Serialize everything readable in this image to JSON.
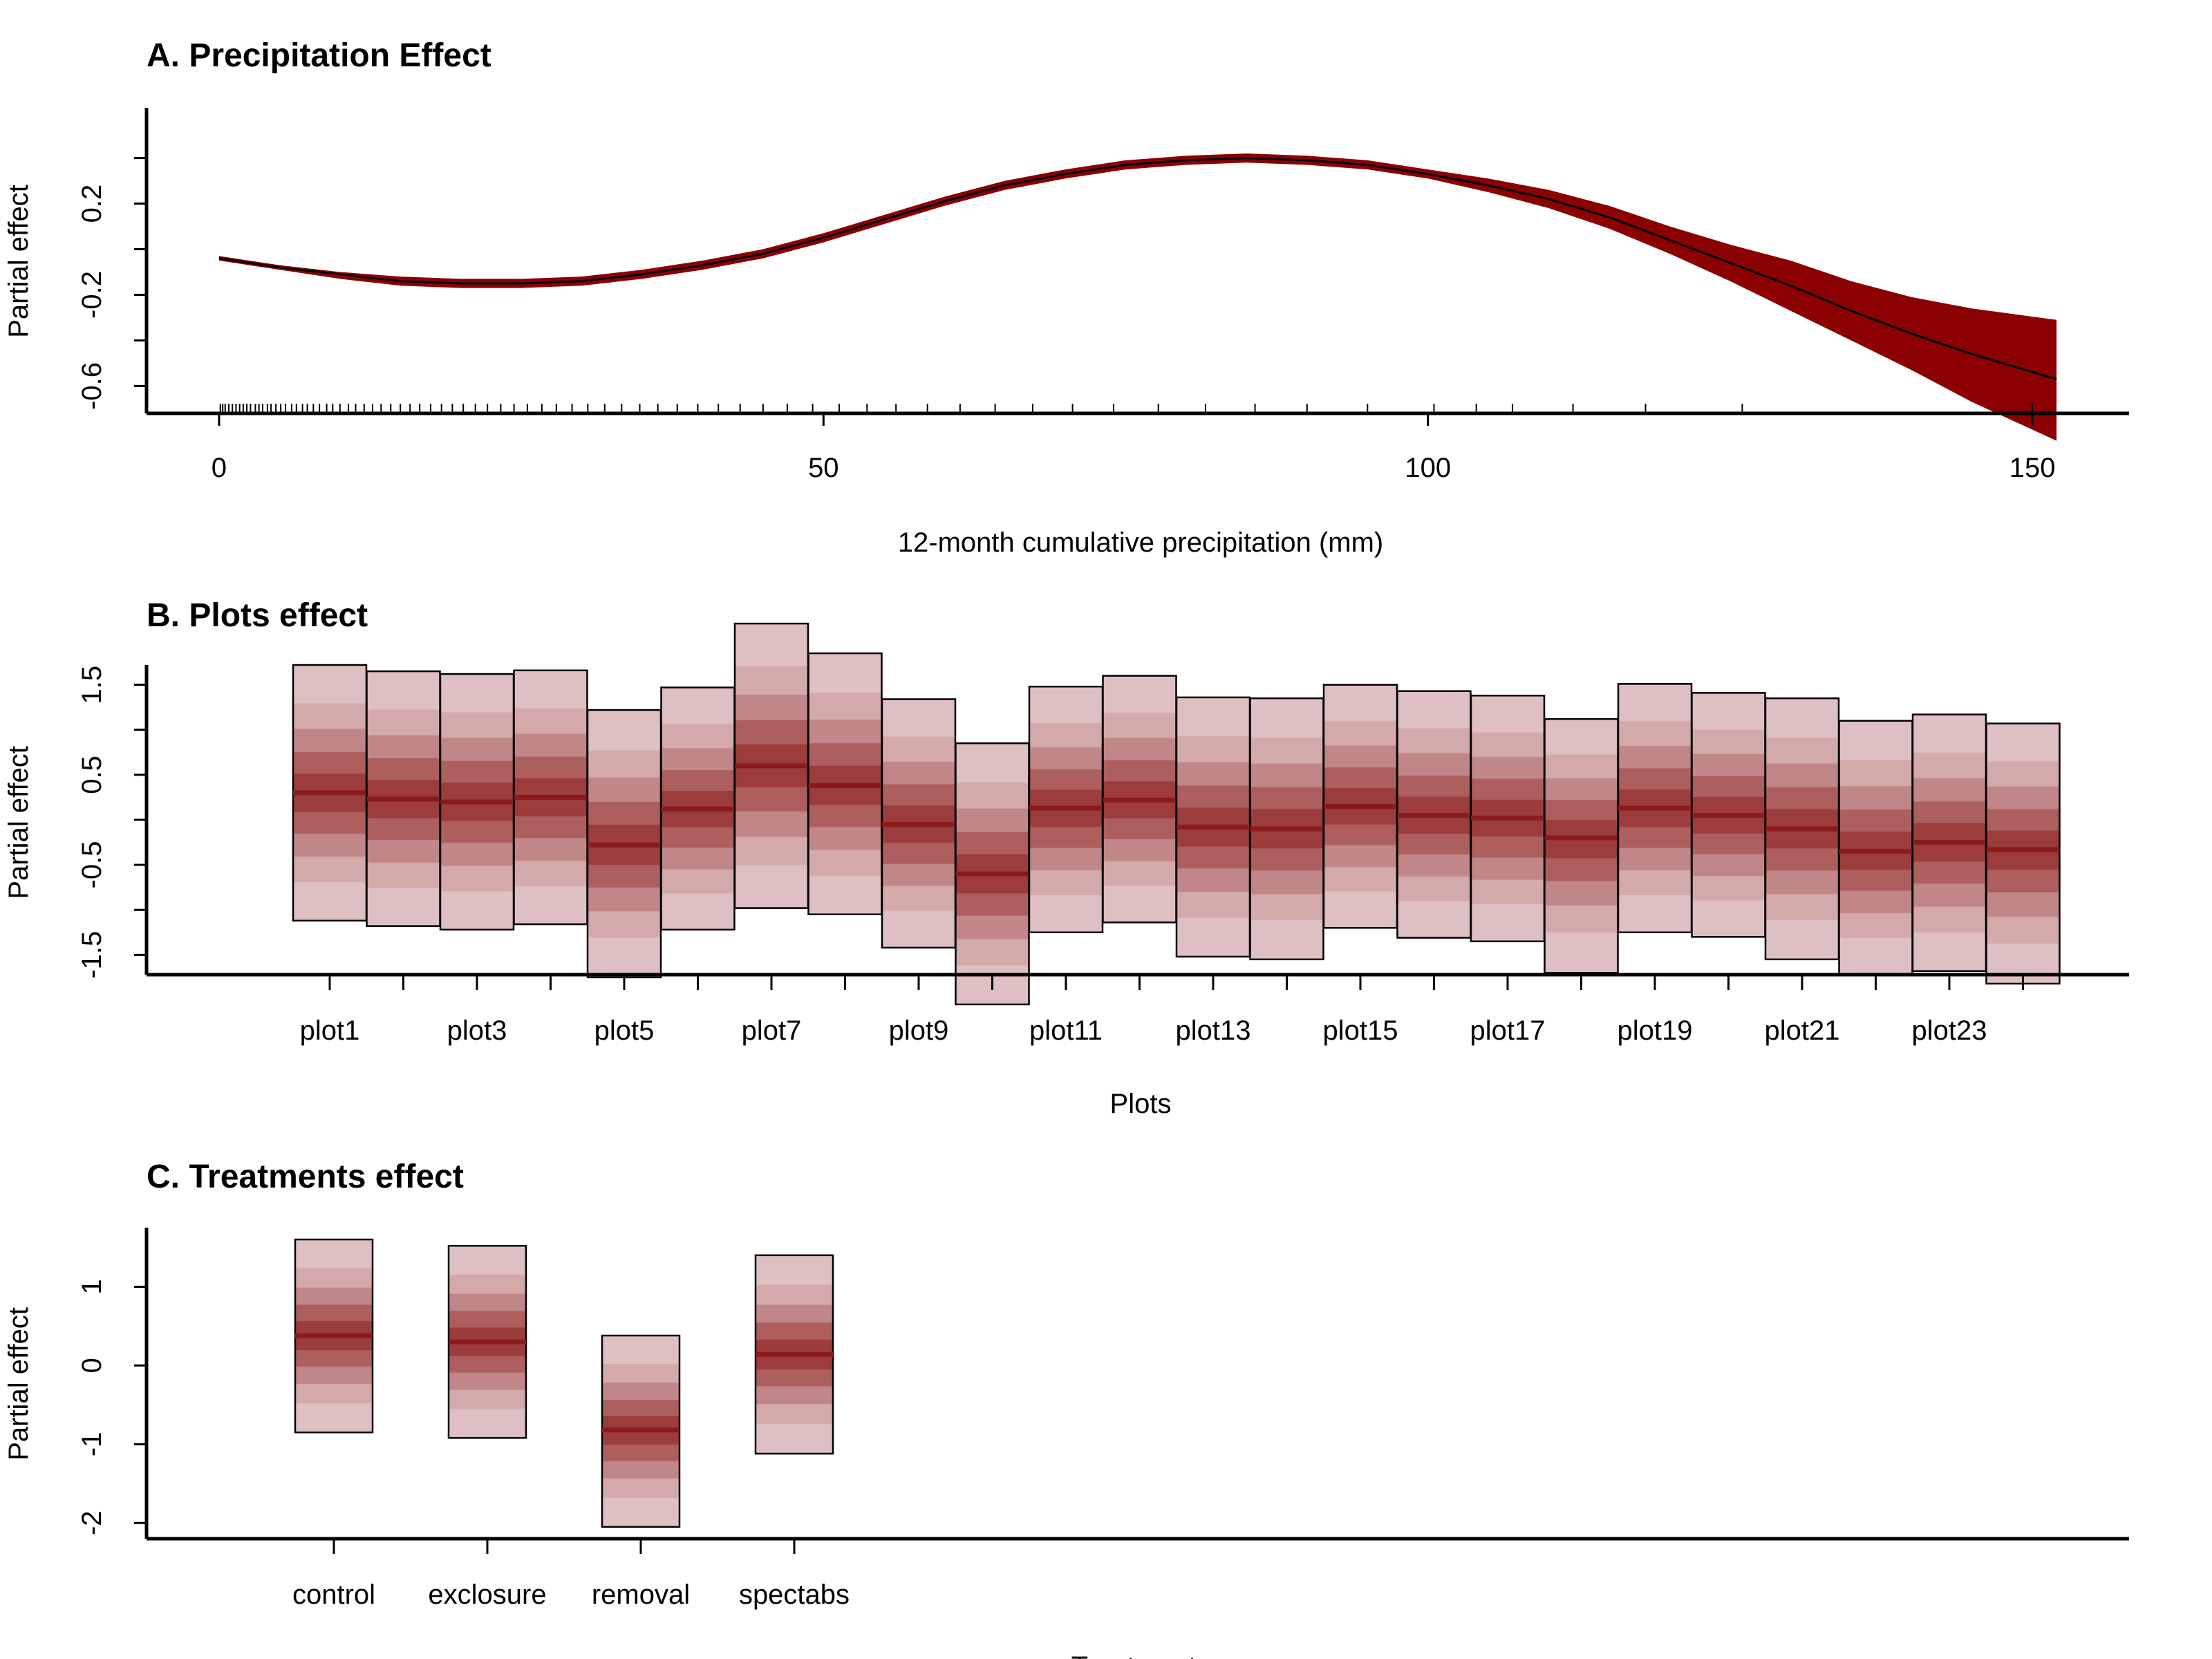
{
  "chart_data": [
    {
      "type": "line",
      "title": "A. Precipitation Effect",
      "xlabel": "12-month cumulative precipitation (mm)",
      "ylabel": "Partial effect",
      "xlim": [
        -6,
        158
      ],
      "ylim": [
        -0.72,
        0.62
      ],
      "x_ticks": [
        "0",
        "50",
        "100",
        "150"
      ],
      "y_ticks": [
        "-0.6",
        "-0.2",
        "0.2"
      ],
      "y_minor_ticks": [
        -0.4,
        0.0,
        0.4
      ],
      "band_color": "#8B0000",
      "line_color": "#000000",
      "series": [
        {
          "x": [
            0,
            5,
            10,
            15,
            20,
            25,
            30,
            35,
            40,
            45,
            50,
            55,
            60,
            65,
            70,
            75,
            80,
            85,
            90,
            95,
            100,
            105,
            110,
            115,
            120,
            125,
            130,
            135,
            140,
            145,
            152
          ],
          "y": [
            -0.04,
            -0.08,
            -0.11,
            -0.14,
            -0.15,
            -0.15,
            -0.14,
            -0.11,
            -0.07,
            -0.02,
            0.05,
            0.13,
            0.21,
            0.28,
            0.33,
            0.37,
            0.39,
            0.4,
            0.39,
            0.37,
            0.33,
            0.28,
            0.22,
            0.14,
            0.04,
            -0.06,
            -0.16,
            -0.27,
            -0.37,
            -0.46,
            -0.57
          ],
          "lower": [
            -0.05,
            -0.09,
            -0.13,
            -0.16,
            -0.17,
            -0.17,
            -0.16,
            -0.13,
            -0.09,
            -0.04,
            0.03,
            0.11,
            0.19,
            0.26,
            0.31,
            0.35,
            0.37,
            0.38,
            0.37,
            0.35,
            0.31,
            0.25,
            0.18,
            0.09,
            -0.02,
            -0.14,
            -0.27,
            -0.4,
            -0.53,
            -0.67,
            -0.84
          ],
          "upper": [
            -0.03,
            -0.07,
            -0.1,
            -0.12,
            -0.13,
            -0.13,
            -0.12,
            -0.09,
            -0.05,
            0.0,
            0.07,
            0.15,
            0.23,
            0.3,
            0.35,
            0.39,
            0.41,
            0.42,
            0.41,
            0.39,
            0.35,
            0.31,
            0.26,
            0.19,
            0.1,
            0.02,
            -0.05,
            -0.14,
            -0.21,
            -0.26,
            -0.31
          ]
        }
      ],
      "rug_x": [
        0.1,
        0.3,
        0.5,
        0.8,
        1.1,
        1.4,
        1.7,
        2.0,
        2.3,
        2.6,
        3.0,
        3.3,
        3.6,
        4.0,
        4.3,
        4.7,
        5.1,
        5.5,
        6.0,
        6.4,
        6.9,
        7.3,
        7.8,
        8.3,
        8.9,
        9.4,
        10.0,
        10.7,
        11.3,
        12.0,
        12.7,
        13.4,
        14.2,
        15.0,
        15.8,
        16.6,
        17.5,
        18.4,
        19.3,
        20.2,
        21.2,
        22.2,
        23.3,
        24.4,
        25.5,
        26.7,
        27.9,
        29.2,
        30.5,
        31.9,
        33.3,
        34.8,
        36.3,
        37.9,
        39.6,
        41.3,
        43.1,
        45.0,
        47.0,
        49.1,
        51.3,
        53.6,
        56.0,
        58.6,
        61.3,
        64.2,
        67.3,
        70.6,
        74.0,
        77.7,
        81.6,
        85.7,
        90.0,
        95.0,
        100.5,
        104.0,
        107.0,
        112.0,
        118.0,
        126.0,
        150.0
      ]
    },
    {
      "type": "bar",
      "title": "B. Plots effect",
      "xlabel": "Plots",
      "ylabel": "Partial effect",
      "ylim": [
        -1.72,
        1.72
      ],
      "y_ticks": [
        "-1.5",
        "-0.5",
        "0.5",
        "1.5"
      ],
      "y_minor_ticks": [
        -1.0,
        0.0,
        1.0
      ],
      "x_tick_labels": [
        "plot1",
        "plot3",
        "plot5",
        "plot7",
        "plot9",
        "plot11",
        "plot13",
        "plot15",
        "plot17",
        "plot19",
        "plot21",
        "plot23"
      ],
      "band_color": "#8B1A1A",
      "box_fill": "#DFC0C2",
      "categories": [
        "plot1",
        "plot2",
        "plot3",
        "plot4",
        "plot5",
        "plot6",
        "plot7",
        "plot8",
        "plot9",
        "plot10",
        "plot11",
        "plot12",
        "plot13",
        "plot14",
        "plot15",
        "plot16",
        "plot17",
        "plot18",
        "plot19",
        "plot20",
        "plot21",
        "plot22",
        "plot23",
        "plot24"
      ],
      "means": [
        0.3,
        0.23,
        0.2,
        0.25,
        -0.28,
        0.12,
        0.6,
        0.38,
        -0.05,
        -0.6,
        0.13,
        0.22,
        -0.08,
        -0.1,
        0.15,
        0.05,
        0.02,
        -0.2,
        0.13,
        0.05,
        -0.1,
        -0.35,
        -0.25,
        -0.33
      ],
      "lower": [
        -1.12,
        -1.18,
        -1.22,
        -1.16,
        -1.75,
        -1.22,
        -0.98,
        -1.05,
        -1.42,
        -2.05,
        -1.25,
        -1.14,
        -1.52,
        -1.55,
        -1.2,
        -1.31,
        -1.35,
        -1.7,
        -1.25,
        -1.3,
        -1.55,
        -1.72,
        -1.68,
        -1.82
      ],
      "upper": [
        1.72,
        1.65,
        1.62,
        1.66,
        1.22,
        1.47,
        2.18,
        1.85,
        1.34,
        0.85,
        1.48,
        1.6,
        1.36,
        1.35,
        1.5,
        1.43,
        1.38,
        1.12,
        1.51,
        1.41,
        1.35,
        1.1,
        1.17,
        1.07
      ]
    },
    {
      "type": "bar",
      "title": "C. Treatments effect",
      "xlabel": "Treatments",
      "ylabel": "Partial effect",
      "ylim": [
        -2.2,
        1.75
      ],
      "y_ticks": [
        "-2",
        "-1",
        "0",
        "1"
      ],
      "band_color": "#8B1A1A",
      "box_fill": "#DFC0C2",
      "categories": [
        "control",
        "exclosure",
        "removal",
        "spectabs"
      ],
      "means": [
        0.38,
        0.3,
        -0.82,
        0.14
      ],
      "lower": [
        -0.85,
        -0.92,
        -2.05,
        -1.12
      ],
      "upper": [
        1.6,
        1.52,
        0.38,
        1.4
      ]
    }
  ]
}
